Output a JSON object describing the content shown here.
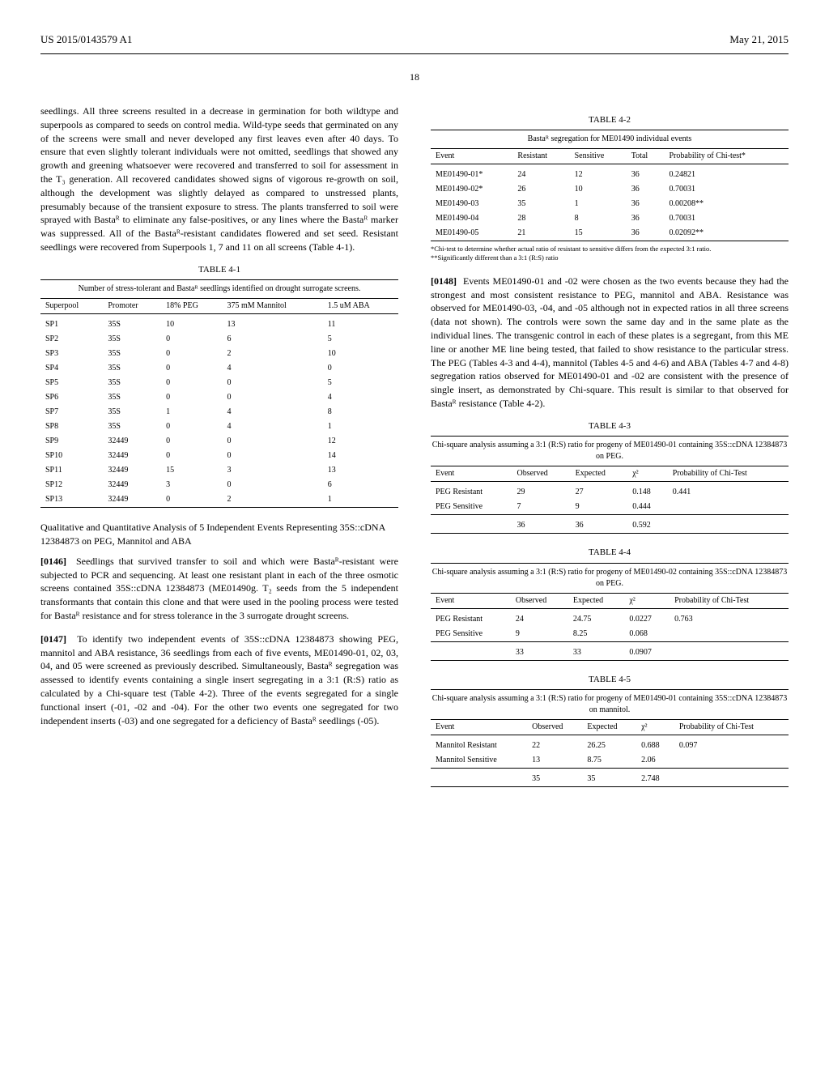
{
  "header": {
    "left": "US 2015/0143579 A1",
    "right": "May 21, 2015"
  },
  "pageNumber": "18",
  "leftColumn": {
    "p1": "seedlings. All three screens resulted in a decrease in germination for both wildtype and superpools as compared to seeds on control media. Wild-type seeds that germinated on any of the screens were small and never developed any first leaves even after 40 days. To ensure that even slightly tolerant individuals were not omitted, seedlings that showed any growth and greening whatsoever were recovered and transferred to soil for assessment in the T₃ generation. All recovered candidates showed signs of vigorous re-growth on soil, although the development was slightly delayed as compared to unstressed plants, presumably because of the transient exposure to stress. The plants transferred to soil were sprayed with Bastaᴿ to eliminate any false-positives, or any lines where the Bastaᴿ marker was suppressed. All of the Bastaᴿ-resistant candidates flowered and set seed. Resistant seedlings were recovered from Superpools 1, 7 and 11 on all screens (Table 4-1).",
    "table41": {
      "label": "TABLE 4-1",
      "caption": "Number of stress-tolerant and Bastaᴿ seedlings identified on drought surrogate screens.",
      "headers": [
        "Superpool",
        "Promoter",
        "18% PEG",
        "375 mM Mannitol",
        "1.5 uM ABA"
      ],
      "rows": [
        [
          "SP1",
          "35S",
          "10",
          "13",
          "11"
        ],
        [
          "SP2",
          "35S",
          "0",
          "6",
          "5"
        ],
        [
          "SP3",
          "35S",
          "0",
          "2",
          "10"
        ],
        [
          "SP4",
          "35S",
          "0",
          "4",
          "0"
        ],
        [
          "SP5",
          "35S",
          "0",
          "0",
          "5"
        ],
        [
          "SP6",
          "35S",
          "0",
          "0",
          "4"
        ],
        [
          "SP7",
          "35S",
          "1",
          "4",
          "8"
        ],
        [
          "SP8",
          "35S",
          "0",
          "4",
          "1"
        ],
        [
          "SP9",
          "32449",
          "0",
          "0",
          "12"
        ],
        [
          "SP10",
          "32449",
          "0",
          "0",
          "14"
        ],
        [
          "SP11",
          "32449",
          "15",
          "3",
          "13"
        ],
        [
          "SP12",
          "32449",
          "3",
          "0",
          "6"
        ],
        [
          "SP13",
          "32449",
          "0",
          "2",
          "1"
        ]
      ]
    },
    "sectionHead": "Qualitative and Quantitative Analysis of 5 Independent Events Representing 35S::cDNA 12384873 on PEG, Mannitol and ABA",
    "p0146num": "[0146]",
    "p0146": "Seedlings that survived transfer to soil and which were Bastaᴿ-resistant were subjected to PCR and sequencing. At least one resistant plant in each of the three osmotic screens contained 35S::cDNA 12384873 (ME01490g. T₂ seeds from the 5 independent transformants that contain this clone and that were used in the pooling process were tested for Bastaᴿ resistance and for stress tolerance in the 3 surrogate drought screens.",
    "p0147num": "[0147]",
    "p0147": "To identify two independent events of 35S::cDNA 12384873 showing PEG, mannitol and ABA resistance, 36 seedlings from each of five events, ME01490-01, 02, 03, 04, and 05 were screened as previously described. Simultaneously, Bastaᴿ segregation was assessed to identify events containing a single insert segregating in a 3:1 (R:S) ratio as calculated by a Chi-square test (Table 4-2). Three of the events segregated for a single functional insert (-01, -02 and -04). For the other two events one segregated for two independent inserts (-03) and one segregated for a deficiency of Bastaᴿ seedlings (-05)."
  },
  "rightColumn": {
    "table42": {
      "label": "TABLE 4-2",
      "caption": "Bastaᴿ segregation for ME01490 individual events",
      "headers": [
        "Event",
        "Resistant",
        "Sensitive",
        "Total",
        "Probability of Chi-test*"
      ],
      "rows": [
        [
          "ME01490-01*",
          "24",
          "12",
          "36",
          "0.24821"
        ],
        [
          "ME01490-02*",
          "26",
          "10",
          "36",
          "0.70031"
        ],
        [
          "ME01490-03",
          "35",
          "1",
          "36",
          "0.00208**"
        ],
        [
          "ME01490-04",
          "28",
          "8",
          "36",
          "0.70031"
        ],
        [
          "ME01490-05",
          "21",
          "15",
          "36",
          "0.02092**"
        ]
      ],
      "footnote1": "*Chi-test to determine whether actual ratio of resistant to sensitive differs from the expected 3:1 ratio.",
      "footnote2": "**Significantly different than a 3:1 (R:S) ratio"
    },
    "p0148num": "[0148]",
    "p0148": "Events ME01490-01 and -02 were chosen as the two events because they had the strongest and most consistent resistance to PEG, mannitol and ABA. Resistance was observed for ME01490-03, -04, and -05 although not in expected ratios in all three screens (data not shown). The controls were sown the same day and in the same plate as the individual lines. The transgenic control in each of these plates is a segregant, from this ME line or another ME line being tested, that failed to show resistance to the particular stress. The PEG (Tables 4-3 and 4-4), mannitol (Tables 4-5 and 4-6) and ABA (Tables 4-7 and 4-8) segregation ratios observed for ME01490-01 and -02 are consistent with the presence of single insert, as demonstrated by Chi-square. This result is similar to that observed for Bastaᴿ resistance (Table 4-2).",
    "table43": {
      "label": "TABLE 4-3",
      "caption": "Chi-square analysis assuming a 3:1 (R:S) ratio for progeny of ME01490-01 containing 35S::cDNA 12384873 on PEG.",
      "headers": [
        "Event",
        "Observed",
        "Expected",
        "χ²",
        "Probability of Chi-Test"
      ],
      "rows": [
        [
          "PEG Resistant",
          "29",
          "27",
          "0.148",
          "0.441"
        ],
        [
          "PEG Sensitive",
          "7",
          "9",
          "0.444",
          ""
        ]
      ],
      "totals": [
        "",
        "36",
        "36",
        "0.592",
        ""
      ]
    },
    "table44": {
      "label": "TABLE 4-4",
      "caption": "Chi-square analysis assuming a 3:1 (R:S) ratio for progeny of ME01490-02 containing 35S::cDNA 12384873 on PEG.",
      "headers": [
        "Event",
        "Observed",
        "Expected",
        "χ²",
        "Probability of Chi-Test"
      ],
      "rows": [
        [
          "PEG Resistant",
          "24",
          "24.75",
          "0.0227",
          "0.763"
        ],
        [
          "PEG Sensitive",
          "9",
          "8.25",
          "0.068",
          ""
        ]
      ],
      "totals": [
        "",
        "33",
        "33",
        "0.0907",
        ""
      ]
    },
    "table45": {
      "label": "TABLE 4-5",
      "caption": "Chi-square analysis assuming a 3:1 (R:S) ratio for progeny of ME01490-01 containing 35S::cDNA 12384873 on mannitol.",
      "headers": [
        "Event",
        "Observed",
        "Expected",
        "χ²",
        "Probability of Chi-Test"
      ],
      "rows": [
        [
          "Mannitol Resistant",
          "22",
          "26.25",
          "0.688",
          "0.097"
        ],
        [
          "Mannitol Sensitive",
          "13",
          "8.75",
          "2.06",
          ""
        ]
      ],
      "totals": [
        "",
        "35",
        "35",
        "2.748",
        ""
      ]
    }
  }
}
